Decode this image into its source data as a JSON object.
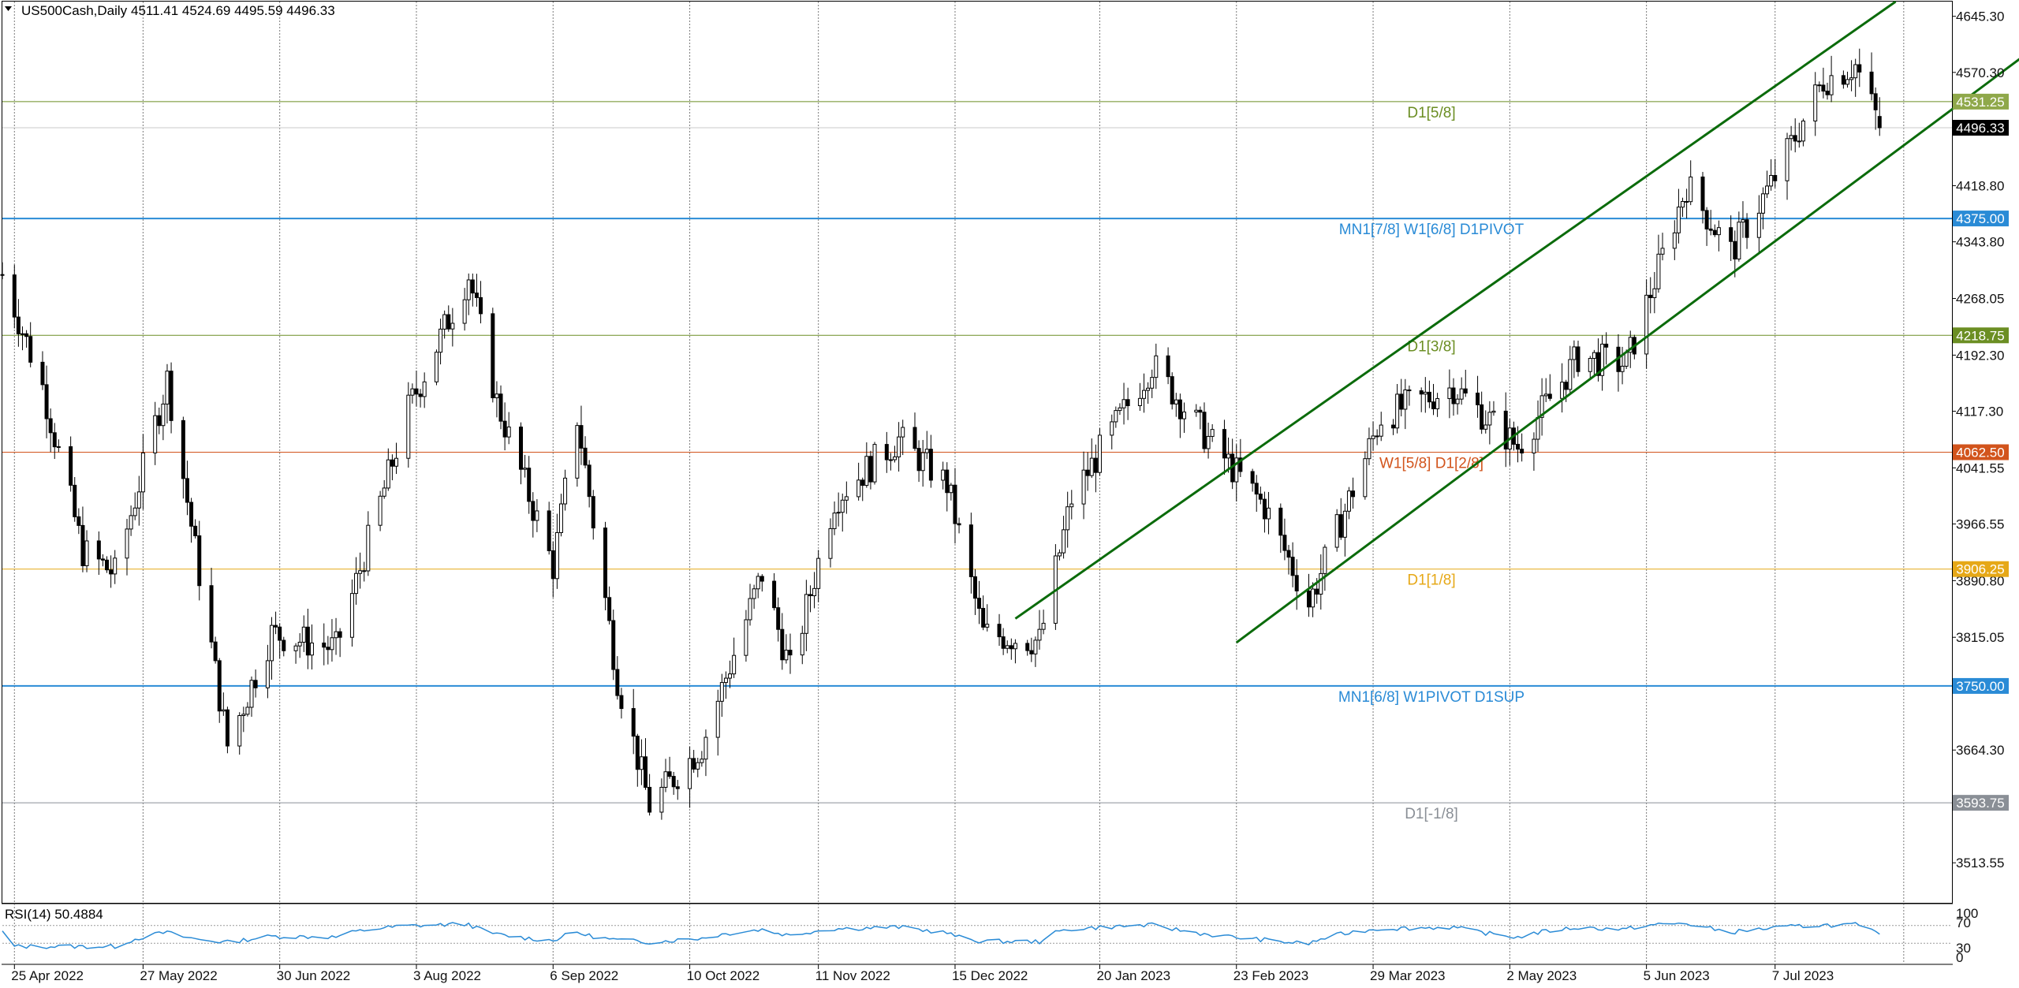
{
  "header": {
    "symbol_label": "US500Cash,Daily",
    "ohlc": "4511.41 4524.69 4495.59 4496.33"
  },
  "rsi": {
    "label": "RSI(14) 50.4884",
    "levels": [
      "100",
      "70",
      "30",
      "0"
    ]
  },
  "price_axis": {
    "ticks": [
      "4645.30",
      "4570.30",
      "4418.80",
      "4343.80",
      "4268.05",
      "4192.30",
      "4117.30",
      "4041.55",
      "3966.55",
      "3890.80",
      "3815.05",
      "3664.30",
      "3513.55"
    ]
  },
  "time_axis": {
    "ticks": [
      "25 Apr 2022",
      "27 May 2022",
      "30 Jun 2022",
      "3 Aug 2022",
      "6 Sep 2022",
      "10 Oct 2022",
      "11 Nov 2022",
      "15 Dec 2022",
      "20 Jan 2023",
      "23 Feb 2023",
      "29 Mar 2023",
      "2 May 2023",
      "5 Jun 2023",
      "7 Jul 2023"
    ]
  },
  "current_price": "4496.33",
  "levels": [
    {
      "price": 4531.25,
      "badge": "4531.25",
      "label": "D1[5/8]",
      "color": "#6b8e23",
      "badge_bg": "#8fa84a"
    },
    {
      "price": 4375.0,
      "badge": "4375.00",
      "label": "MN1[7/8] W1[6/8] D1PIVOT",
      "color": "#2a8bd6",
      "badge_bg": "#2a8bd6"
    },
    {
      "price": 4218.75,
      "badge": "4218.75",
      "label": "D1[3/8]",
      "color": "#6b8e23",
      "badge_bg": "#6b8e23"
    },
    {
      "price": 4062.5,
      "badge": "4062.50",
      "label": "W1[5/8] D1[2/8]",
      "color": "#d2541c",
      "badge_bg": "#d2541c"
    },
    {
      "price": 3906.25,
      "badge": "3906.25",
      "label": "D1[1/8]",
      "color": "#e6a817",
      "badge_bg": "#e6a817"
    },
    {
      "price": 3750.0,
      "badge": "3750.00",
      "label": "MN1[6/8] W1PIVOT D1SUP",
      "color": "#2a8bd6",
      "badge_bg": "#2a8bd6"
    },
    {
      "price": 3593.75,
      "badge": "3593.75",
      "label": "D1[-1/8]",
      "color": "#8a8f96",
      "badge_bg": "#8a8f96"
    }
  ],
  "colors": {
    "channel": "#0b6b0b",
    "candle": "#000000",
    "rsi_line": "#2a8bd6",
    "current_badge_bg": "#000000"
  },
  "chart_data": {
    "type": "candlestick",
    "symbol": "US500Cash",
    "timeframe": "Daily",
    "last_ohlc": {
      "open": 4511.41,
      "high": 4524.69,
      "low": 4495.59,
      "close": 4496.33
    },
    "y_range": [
      3460,
      4665
    ],
    "x_range": [
      "2022-04-22",
      "2023-08-20"
    ],
    "closes_anchor_series": [
      {
        "date": "2022-04-22",
        "value": 4300
      },
      {
        "date": "2022-05-02",
        "value": 4150
      },
      {
        "date": "2022-05-12",
        "value": 3930
      },
      {
        "date": "2022-05-20",
        "value": 3900
      },
      {
        "date": "2022-06-02",
        "value": 4160
      },
      {
        "date": "2022-06-10",
        "value": 3900
      },
      {
        "date": "2022-06-17",
        "value": 3670
      },
      {
        "date": "2022-06-28",
        "value": 3820
      },
      {
        "date": "2022-07-14",
        "value": 3800
      },
      {
        "date": "2022-08-01",
        "value": 4120
      },
      {
        "date": "2022-08-16",
        "value": 4300
      },
      {
        "date": "2022-08-23",
        "value": 4130
      },
      {
        "date": "2022-09-06",
        "value": 3910
      },
      {
        "date": "2022-09-12",
        "value": 4110
      },
      {
        "date": "2022-09-22",
        "value": 3760
      },
      {
        "date": "2022-09-30",
        "value": 3590
      },
      {
        "date": "2022-10-13",
        "value": 3670
      },
      {
        "date": "2022-10-28",
        "value": 3900
      },
      {
        "date": "2022-11-04",
        "value": 3770
      },
      {
        "date": "2022-11-15",
        "value": 4000
      },
      {
        "date": "2022-12-01",
        "value": 4080
      },
      {
        "date": "2022-12-13",
        "value": 4020
      },
      {
        "date": "2022-12-22",
        "value": 3820
      },
      {
        "date": "2023-01-05",
        "value": 3810
      },
      {
        "date": "2023-01-13",
        "value": 4000
      },
      {
        "date": "2023-02-02",
        "value": 4180
      },
      {
        "date": "2023-02-16",
        "value": 4080
      },
      {
        "date": "2023-03-02",
        "value": 3990
      },
      {
        "date": "2023-03-13",
        "value": 3860
      },
      {
        "date": "2023-03-31",
        "value": 4110
      },
      {
        "date": "2023-04-18",
        "value": 4150
      },
      {
        "date": "2023-05-04",
        "value": 4070
      },
      {
        "date": "2023-05-19",
        "value": 4190
      },
      {
        "date": "2023-05-31",
        "value": 4180
      },
      {
        "date": "2023-06-15",
        "value": 4420
      },
      {
        "date": "2023-06-26",
        "value": 4330
      },
      {
        "date": "2023-07-06",
        "value": 4420
      },
      {
        "date": "2023-07-19",
        "value": 4560
      },
      {
        "date": "2023-07-27",
        "value": 4580
      },
      {
        "date": "2023-08-02",
        "value": 4500
      }
    ],
    "channel_lines": [
      {
        "name": "upper",
        "from": {
          "date": "2022-12-30",
          "value": 3840
        },
        "to": {
          "date": "2023-08-06",
          "value": 4665
        }
      },
      {
        "name": "lower",
        "from": {
          "date": "2023-02-23",
          "value": 3808
        },
        "to": {
          "date": "2023-09-25",
          "value": 4665
        }
      }
    ],
    "rsi": {
      "period": 14,
      "last": 50.4884,
      "levels": [
        70,
        30
      ],
      "range": [
        0,
        100
      ]
    },
    "grid": true
  }
}
